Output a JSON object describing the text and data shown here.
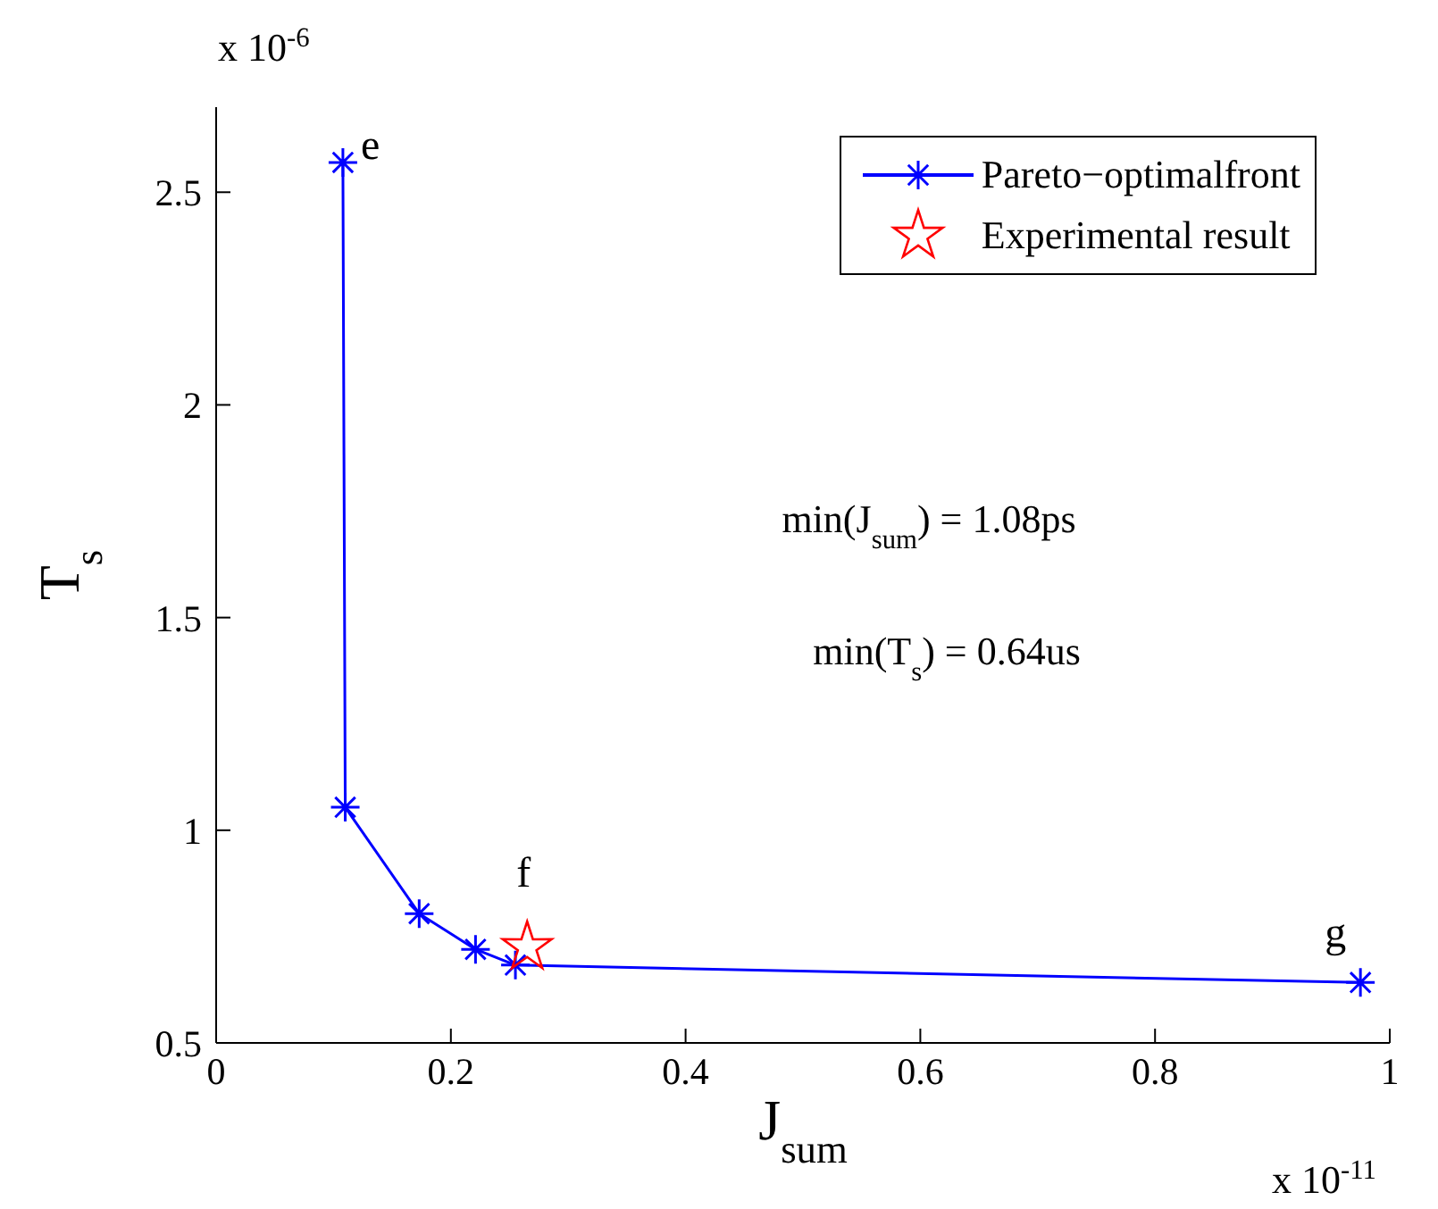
{
  "chart_data": {
    "type": "line",
    "xlabel": "J$_{sum}$",
    "ylabel": "T$_{s}$",
    "xlim": [
      0,
      1
    ],
    "xticks": [
      0,
      0.2,
      0.4,
      0.6,
      0.8,
      1
    ],
    "ylim": [
      0.5,
      2.7
    ],
    "yticks": [
      0.5,
      1,
      1.5,
      2,
      2.5
    ],
    "series": [
      {
        "name": "Pareto−optimalfront",
        "color": "#0000ff",
        "marker": "cross",
        "line_style": "solid",
        "x": [
          0.108,
          0.11,
          0.173,
          0.221,
          0.255,
          0.975
        ],
        "values": [
          2.57,
          1.054,
          0.804,
          0.72,
          0.683,
          0.642
        ]
      },
      {
        "name": "Experimental result",
        "type": "scatter",
        "color": "#ff0000",
        "marker": "star",
        "x": [
          0.265
        ],
        "values": [
          0.725
        ]
      }
    ],
    "legend": "top right",
    "grid": false,
    "annotations": [
      "x 10$^{-6}$",
      {
        "text": "e",
        "x": 0.108,
        "y": 2.57
      },
      {
        "text": "min(J$_{sum}$) = 1.08ps"
      },
      {
        "text": "min(T$_{s}$) = 0.64us"
      },
      {
        "text": "f",
        "x": 0.265,
        "y": 0.725
      },
      {
        "text": "g",
        "x": 0.975,
        "y": 0.642
      },
      "x 10$^{-11}$"
    ]
  }
}
